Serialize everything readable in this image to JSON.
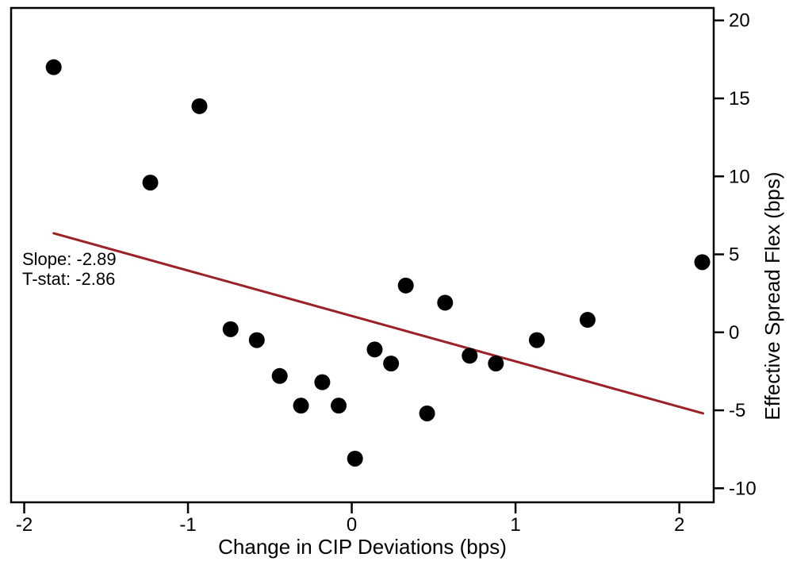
{
  "figure": {
    "background_color": "#ffffff",
    "frame_color": "#000000",
    "point_color": "#000000",
    "accent_color": "#9b2126"
  },
  "chart_data": {
    "type": "scatter",
    "title": "",
    "xlabel": "Change in CIP Deviations (bps)",
    "ylabel": "Effective Spread Flex (bps)",
    "xlim": [
      -2.08,
      2.21
    ],
    "ylim": [
      -10.9,
      20.8
    ],
    "x_ticks": [
      -2,
      -1,
      0,
      1,
      2
    ],
    "y_ticks": [
      20,
      15,
      10,
      5,
      0,
      -5,
      -10
    ],
    "y_axis_side": "right",
    "grid": false,
    "legend": "none",
    "points": [
      [
        -1.82,
        17.0
      ],
      [
        -1.23,
        9.6
      ],
      [
        -0.93,
        14.5
      ],
      [
        -0.74,
        0.2
      ],
      [
        -0.58,
        -0.5
      ],
      [
        -0.44,
        -2.8
      ],
      [
        -0.31,
        -4.7
      ],
      [
        -0.18,
        -3.2
      ],
      [
        -0.08,
        -4.7
      ],
      [
        0.02,
        -8.1
      ],
      [
        0.14,
        -1.1
      ],
      [
        0.24,
        -2.0
      ],
      [
        0.33,
        3.0
      ],
      [
        0.46,
        -5.2
      ],
      [
        0.57,
        1.9
      ],
      [
        0.72,
        -1.5
      ],
      [
        0.88,
        -2.0
      ],
      [
        1.13,
        -0.5
      ],
      [
        1.44,
        0.8
      ],
      [
        2.14,
        4.5
      ]
    ],
    "trendline": {
      "slope": -2.89,
      "x1": -1.82,
      "y1": 6.35,
      "x2": 2.145,
      "y2": -5.2,
      "color": "#9b2126"
    },
    "annotation": {
      "lines": [
        "Slope: -2.89",
        "T-stat: -2.86"
      ],
      "color": "#9b2126"
    }
  }
}
